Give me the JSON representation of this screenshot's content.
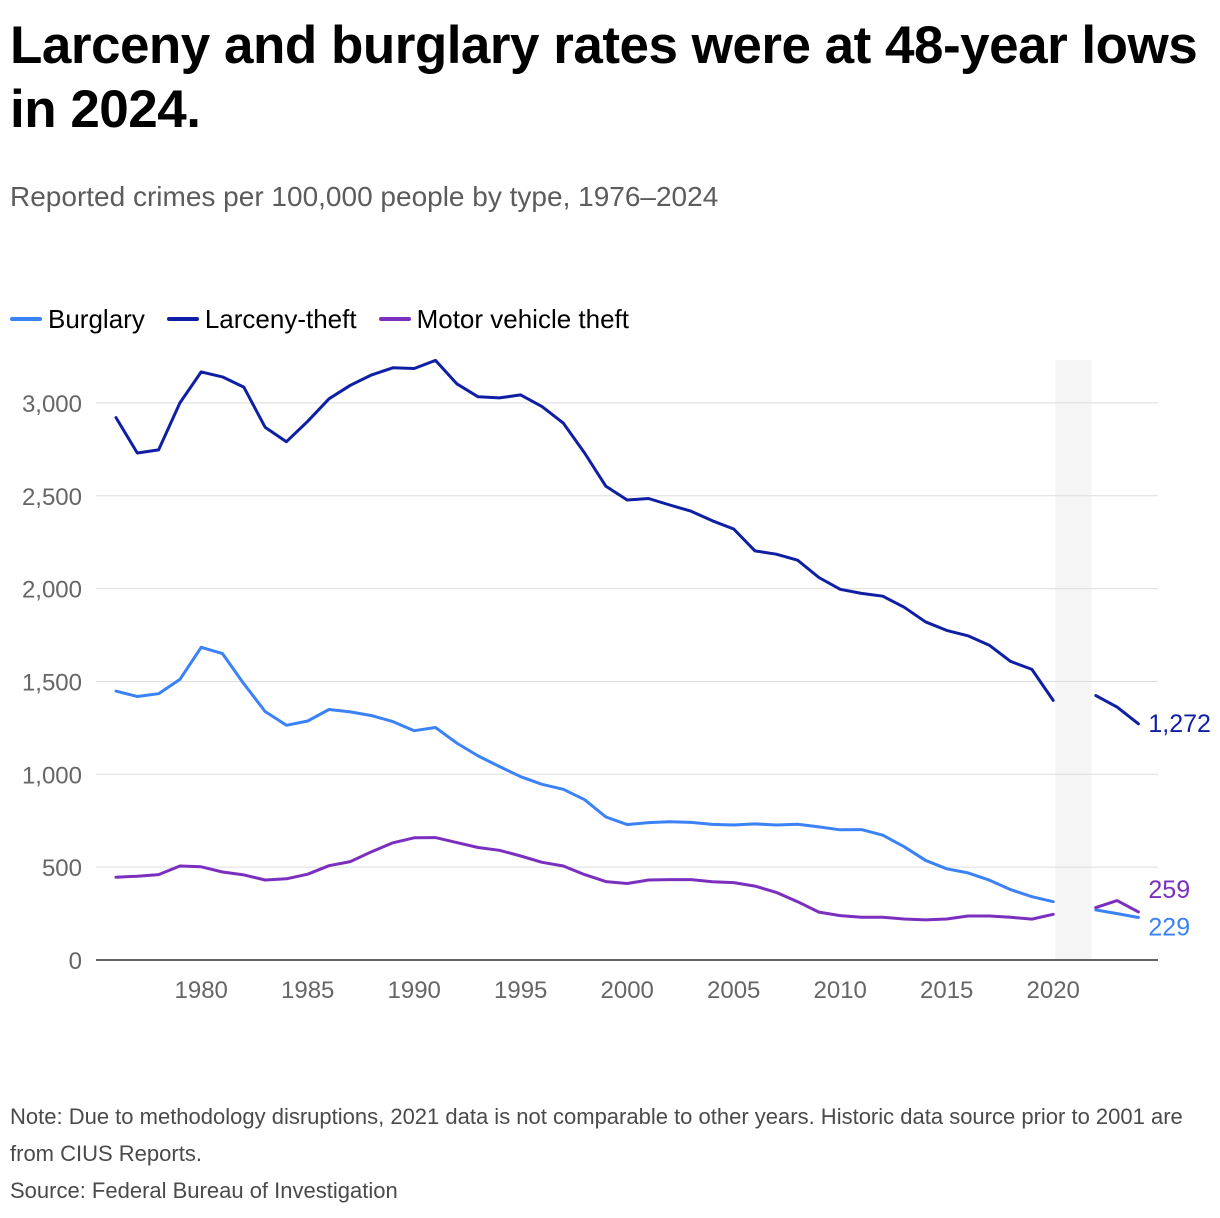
{
  "title": "Larceny and burglary rates were at 48-year lows in 2024.",
  "subtitle": "Reported crimes per 100,000 people by type, 1976–2024",
  "notes": {
    "note": "Note: Due to methodology disruptions, 2021 data is not comparable to other years. Historic data source prior to 2001 are from CIUS Reports.",
    "source": "Source: Federal Bureau of Investigation"
  },
  "chart_data": {
    "type": "line",
    "title": "Larceny and burglary rates were at 48-year lows in 2024.",
    "subtitle": "Reported crimes per 100,000 people by type, 1976–2024",
    "xlabel": "",
    "ylabel": "",
    "xlim": [
      1976,
      2024
    ],
    "ylim": [
      0,
      3300
    ],
    "x_ticks": [
      1980,
      1985,
      1990,
      1995,
      2000,
      2005,
      2010,
      2015,
      2020
    ],
    "x_tick_labels": [
      "1980",
      "1985",
      "1990",
      "1995",
      "2000",
      "2005",
      "2010",
      "2015",
      "2020"
    ],
    "y_ticks": [
      0,
      500,
      1000,
      1500,
      2000,
      2500,
      3000
    ],
    "y_tick_labels": [
      "0",
      "500",
      "1,000",
      "1,500",
      "2,000",
      "2,500",
      "3,000"
    ],
    "grid": true,
    "legend_position": "top-left",
    "highlight_band": {
      "from": 2020.1,
      "to": 2021.8,
      "color": "#f5f5f5",
      "meaning": "2021 data not comparable"
    },
    "x": [
      1976,
      1977,
      1978,
      1979,
      1980,
      1981,
      1982,
      1983,
      1984,
      1985,
      1986,
      1987,
      1988,
      1989,
      1990,
      1991,
      1992,
      1993,
      1994,
      1995,
      1996,
      1997,
      1998,
      1999,
      2000,
      2001,
      2002,
      2003,
      2004,
      2005,
      2006,
      2007,
      2008,
      2009,
      2010,
      2011,
      2012,
      2013,
      2014,
      2015,
      2016,
      2017,
      2018,
      2019,
      2020,
      2021,
      2022,
      2023,
      2024
    ],
    "series": [
      {
        "name": "Burglary",
        "color": "#3b82f6",
        "end_label": "229",
        "values": [
          1448,
          1419,
          1434,
          1511,
          1684,
          1650,
          1488,
          1338,
          1264,
          1287,
          1349,
          1336,
          1316,
          1284,
          1235,
          1252,
          1168,
          1099,
          1042,
          987,
          946,
          919,
          863,
          770,
          729,
          740,
          745,
          741,
          730,
          727,
          733,
          727,
          731,
          717,
          701,
          702,
          672,
          610,
          537,
          491,
          469,
          430,
          379,
          341,
          314,
          null,
          270,
          250,
          229
        ]
      },
      {
        "name": "Larceny-theft",
        "color": "#0f1fa3",
        "end_label": "1,272",
        "values": [
          2921,
          2730,
          2747,
          3000,
          3167,
          3140,
          3085,
          2869,
          2791,
          2901,
          3022,
          3095,
          3151,
          3189,
          3185,
          3229,
          3103,
          3033,
          3027,
          3043,
          2980,
          2891,
          2730,
          2551,
          2477,
          2485,
          2450,
          2417,
          2365,
          2321,
          2203,
          2185,
          2153,
          2060,
          1996,
          1974,
          1959,
          1900,
          1821,
          1775,
          1746,
          1695,
          1608,
          1565,
          1398,
          null,
          1424,
          1362,
          1272
        ]
      },
      {
        "name": "Motor vehicle theft",
        "color": "#7b2fbe",
        "end_label": "259",
        "values": [
          446,
          451,
          460,
          506,
          502,
          474,
          458,
          431,
          437,
          462,
          508,
          530,
          583,
          631,
          658,
          659,
          632,
          606,
          591,
          560,
          526,
          506,
          460,
          422,
          412,
          431,
          433,
          433,
          421,
          417,
          398,
          364,
          314,
          258,
          239,
          230,
          230,
          221,
          216,
          221,
          237,
          237,
          230,
          220,
          246,
          null,
          282,
          320,
          259
        ]
      }
    ]
  }
}
